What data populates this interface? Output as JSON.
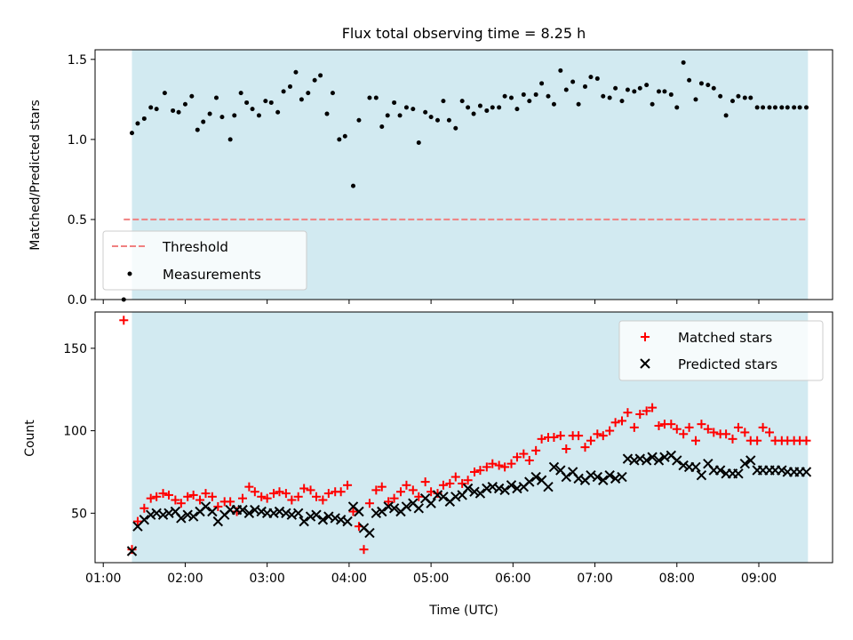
{
  "colors": {
    "span": "#add8e6",
    "threshold": "#f08080",
    "measurement": "#000000",
    "matched": "#ff0000",
    "predicted": "#000000"
  },
  "chart_data": [
    {
      "type": "scatter",
      "title": "Flux total observing time = 8.25 h",
      "xlabel": "",
      "ylabel": "Matched/Predicted stars",
      "xlim": [
        0.9,
        9.9
      ],
      "ylim": [
        0.0,
        1.56
      ],
      "yticks": [
        0.0,
        0.5,
        1.0,
        1.5
      ],
      "ytick_labels": [
        "0.0",
        "0.5",
        "1.0",
        "1.5"
      ],
      "observing_span": [
        1.35,
        9.6
      ],
      "threshold": {
        "name": "Threshold",
        "value": 0.5,
        "x_range": [
          1.25,
          9.6
        ],
        "style": "dashed"
      },
      "legend": {
        "position": "bottom-left",
        "entries": [
          "Threshold",
          "Measurements"
        ]
      },
      "series": [
        {
          "name": "Measurements",
          "marker": "dot",
          "x": [
            1.25,
            1.35,
            1.42,
            1.5,
            1.58,
            1.65,
            1.75,
            1.85,
            1.92,
            2.0,
            2.08,
            2.15,
            2.22,
            2.3,
            2.38,
            2.45,
            2.55,
            2.6,
            2.68,
            2.75,
            2.82,
            2.9,
            2.98,
            3.05,
            3.13,
            3.2,
            3.28,
            3.35,
            3.42,
            3.5,
            3.58,
            3.65,
            3.73,
            3.8,
            3.88,
            3.95,
            4.05,
            4.12,
            4.25,
            4.33,
            4.4,
            4.47,
            4.55,
            4.62,
            4.7,
            4.78,
            4.85,
            4.93,
            5.0,
            5.08,
            5.15,
            5.22,
            5.3,
            5.38,
            5.45,
            5.52,
            5.6,
            5.68,
            5.75,
            5.83,
            5.9,
            5.98,
            6.05,
            6.13,
            6.2,
            6.28,
            6.35,
            6.43,
            6.5,
            6.58,
            6.65,
            6.73,
            6.8,
            6.88,
            6.95,
            7.03,
            7.1,
            7.18,
            7.25,
            7.33,
            7.4,
            7.48,
            7.55,
            7.63,
            7.7,
            7.78,
            7.85,
            7.93,
            8.0,
            8.08,
            8.15,
            8.23,
            8.3,
            8.38,
            8.45,
            8.53,
            8.6,
            8.68,
            8.75,
            8.83,
            8.9,
            8.98,
            9.05,
            9.13,
            9.2,
            9.28,
            9.35,
            9.43,
            9.5,
            9.58
          ],
          "y": [
            0.0,
            1.04,
            1.1,
            1.13,
            1.2,
            1.19,
            1.29,
            1.18,
            1.17,
            1.22,
            1.27,
            1.06,
            1.11,
            1.16,
            1.26,
            1.14,
            1.0,
            1.15,
            1.29,
            1.23,
            1.19,
            1.15,
            1.24,
            1.23,
            1.17,
            1.3,
            1.33,
            1.42,
            1.25,
            1.29,
            1.37,
            1.4,
            1.16,
            1.29,
            1.0,
            1.02,
            0.71,
            1.12,
            1.26,
            1.26,
            1.08,
            1.15,
            1.23,
            1.15,
            1.2,
            1.19,
            0.98,
            1.17,
            1.14,
            1.12,
            1.24,
            1.12,
            1.07,
            1.24,
            1.2,
            1.16,
            1.21,
            1.18,
            1.2,
            1.2,
            1.27,
            1.26,
            1.19,
            1.28,
            1.24,
            1.28,
            1.35,
            1.27,
            1.22,
            1.43,
            1.31,
            1.36,
            1.22,
            1.33,
            1.39,
            1.38,
            1.27,
            1.26,
            1.32,
            1.24,
            1.31,
            1.3,
            1.32,
            1.34,
            1.22,
            1.3,
            1.3,
            1.28,
            1.2,
            1.48,
            1.37,
            1.25,
            1.35,
            1.34,
            1.32,
            1.27,
            1.15,
            1.24,
            1.27,
            1.26,
            1.26,
            1.2,
            1.2,
            1.2,
            1.2,
            1.2,
            1.2,
            1.2,
            1.2,
            1.2
          ]
        }
      ]
    },
    {
      "type": "scatter",
      "title": "",
      "xlabel": "Time (UTC)",
      "ylabel": "Count",
      "xlim": [
        0.9,
        9.9
      ],
      "ylim": [
        20,
        172
      ],
      "yticks": [
        50,
        100,
        150
      ],
      "ytick_labels": [
        "50",
        "100",
        "150"
      ],
      "xticks": [
        1,
        2,
        3,
        4,
        5,
        6,
        7,
        8,
        9
      ],
      "xtick_labels": [
        "01:00",
        "02:00",
        "03:00",
        "04:00",
        "05:00",
        "06:00",
        "07:00",
        "08:00",
        "09:00"
      ],
      "observing_span": [
        1.35,
        9.6
      ],
      "legend": {
        "position": "top-right",
        "entries": [
          "Matched stars",
          "Predicted stars"
        ]
      },
      "series": [
        {
          "name": "Matched stars",
          "marker": "plus",
          "x": [
            1.25,
            1.35,
            1.42,
            1.5,
            1.58,
            1.65,
            1.73,
            1.8,
            1.88,
            1.95,
            2.03,
            2.1,
            2.18,
            2.25,
            2.33,
            2.4,
            2.48,
            2.55,
            2.63,
            2.7,
            2.78,
            2.85,
            2.93,
            3.0,
            3.08,
            3.15,
            3.23,
            3.3,
            3.38,
            3.45,
            3.53,
            3.6,
            3.68,
            3.75,
            3.83,
            3.9,
            3.98,
            4.05,
            4.12,
            4.18,
            4.25,
            4.33,
            4.4,
            4.48,
            4.55,
            4.63,
            4.7,
            4.78,
            4.85,
            4.93,
            5.0,
            5.08,
            5.15,
            5.23,
            5.3,
            5.38,
            5.45,
            5.53,
            5.6,
            5.68,
            5.75,
            5.83,
            5.9,
            5.98,
            6.05,
            6.13,
            6.2,
            6.28,
            6.35,
            6.43,
            6.5,
            6.58,
            6.65,
            6.73,
            6.8,
            6.88,
            6.95,
            7.03,
            7.1,
            7.18,
            7.25,
            7.33,
            7.4,
            7.48,
            7.55,
            7.63,
            7.7,
            7.78,
            7.85,
            7.93,
            8.0,
            8.08,
            8.15,
            8.23,
            8.3,
            8.38,
            8.45,
            8.53,
            8.6,
            8.68,
            8.75,
            8.83,
            8.9,
            8.98,
            9.05,
            9.13,
            9.2,
            9.28,
            9.35,
            9.43,
            9.5,
            9.58
          ],
          "y": [
            167,
            28,
            45,
            53,
            59,
            60,
            62,
            61,
            58,
            56,
            60,
            61,
            58,
            62,
            60,
            54,
            57,
            57,
            51,
            59,
            66,
            63,
            60,
            59,
            62,
            63,
            62,
            58,
            60,
            65,
            64,
            60,
            58,
            62,
            63,
            63,
            67,
            51,
            42,
            28,
            56,
            64,
            66,
            57,
            59,
            63,
            67,
            64,
            60,
            69,
            63,
            62,
            67,
            68,
            72,
            68,
            70,
            75,
            76,
            78,
            80,
            79,
            78,
            80,
            84,
            86,
            82,
            88,
            95,
            96,
            96,
            97,
            89,
            97,
            97,
            90,
            94,
            98,
            97,
            100,
            105,
            106,
            111,
            102,
            110,
            112,
            114,
            103,
            104,
            104,
            101,
            98,
            102,
            94,
            104,
            101,
            99,
            98,
            98,
            95,
            102,
            99,
            94,
            94,
            102,
            99,
            94,
            94,
            94,
            94,
            94,
            94
          ]
        },
        {
          "name": "Predicted stars",
          "marker": "x",
          "x": [
            1.35,
            1.42,
            1.5,
            1.58,
            1.65,
            1.73,
            1.8,
            1.88,
            1.95,
            2.03,
            2.1,
            2.18,
            2.25,
            2.33,
            2.4,
            2.48,
            2.55,
            2.63,
            2.7,
            2.78,
            2.85,
            2.93,
            3.0,
            3.08,
            3.15,
            3.23,
            3.3,
            3.38,
            3.45,
            3.53,
            3.6,
            3.68,
            3.75,
            3.83,
            3.9,
            3.98,
            4.05,
            4.12,
            4.18,
            4.25,
            4.33,
            4.4,
            4.48,
            4.55,
            4.63,
            4.7,
            4.78,
            4.85,
            4.93,
            5.0,
            5.08,
            5.15,
            5.23,
            5.3,
            5.38,
            5.45,
            5.53,
            5.6,
            5.68,
            5.75,
            5.83,
            5.9,
            5.98,
            6.05,
            6.13,
            6.2,
            6.28,
            6.35,
            6.43,
            6.5,
            6.58,
            6.65,
            6.73,
            6.8,
            6.88,
            6.95,
            7.03,
            7.1,
            7.18,
            7.25,
            7.33,
            7.4,
            7.48,
            7.55,
            7.63,
            7.7,
            7.78,
            7.85,
            7.93,
            8.0,
            8.08,
            8.15,
            8.23,
            8.3,
            8.38,
            8.45,
            8.53,
            8.6,
            8.68,
            8.75,
            8.83,
            8.9,
            8.98,
            9.05,
            9.13,
            9.2,
            9.28,
            9.35,
            9.43,
            9.5,
            9.58
          ],
          "y": [
            27,
            42,
            46,
            49,
            50,
            49,
            50,
            51,
            47,
            49,
            48,
            51,
            54,
            51,
            45,
            49,
            52,
            52,
            52,
            50,
            52,
            51,
            50,
            50,
            51,
            50,
            49,
            50,
            45,
            48,
            49,
            46,
            48,
            47,
            46,
            45,
            54,
            51,
            41,
            38,
            50,
            51,
            54,
            53,
            51,
            54,
            56,
            53,
            59,
            56,
            61,
            60,
            57,
            60,
            61,
            65,
            63,
            62,
            65,
            66,
            65,
            64,
            67,
            65,
            66,
            69,
            72,
            70,
            66,
            78,
            76,
            72,
            75,
            71,
            70,
            73,
            72,
            70,
            73,
            71,
            72,
            83,
            82,
            83,
            82,
            84,
            82,
            84,
            85,
            82,
            79,
            78,
            78,
            73,
            80,
            76,
            76,
            74,
            74,
            74,
            80,
            82,
            76,
            76,
            76,
            76,
            76,
            75,
            75,
            75,
            75
          ]
        }
      ]
    }
  ]
}
